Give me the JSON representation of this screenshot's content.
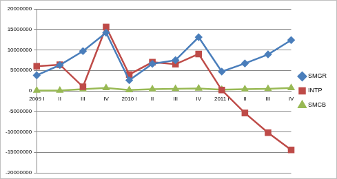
{
  "chart_data": {
    "type": "line",
    "categories": [
      "2009 I",
      "II",
      "III",
      "IV",
      "2010 I",
      "II",
      "III",
      "IV",
      "2011 I",
      "II",
      "III",
      "IV"
    ],
    "series": [
      {
        "name": "SMGR",
        "color": "#4a7ebb",
        "marker": "diamond",
        "values": [
          3800000,
          6300000,
          9700000,
          14200000,
          2600000,
          6600000,
          7500000,
          13100000,
          4700000,
          6700000,
          8900000,
          12400000
        ]
      },
      {
        "name": "INTP",
        "color": "#be4b48",
        "marker": "square",
        "values": [
          6000000,
          6400000,
          1000000,
          15600000,
          4000000,
          7000000,
          6500000,
          9000000,
          200000,
          -5400000,
          -10200000,
          -14400000
        ]
      },
      {
        "name": "SMCB",
        "color": "#98b954",
        "marker": "triangle",
        "values": [
          100000,
          100000,
          400000,
          700000,
          200000,
          400000,
          500000,
          600000,
          300000,
          400000,
          500000,
          700000
        ]
      }
    ],
    "ylim": [
      -20000000,
      20000000
    ],
    "yticks": [
      -20000000,
      -15000000,
      -10000000,
      -5000000,
      0,
      5000000,
      10000000,
      15000000,
      20000000
    ],
    "grid": true,
    "legend": "right"
  }
}
